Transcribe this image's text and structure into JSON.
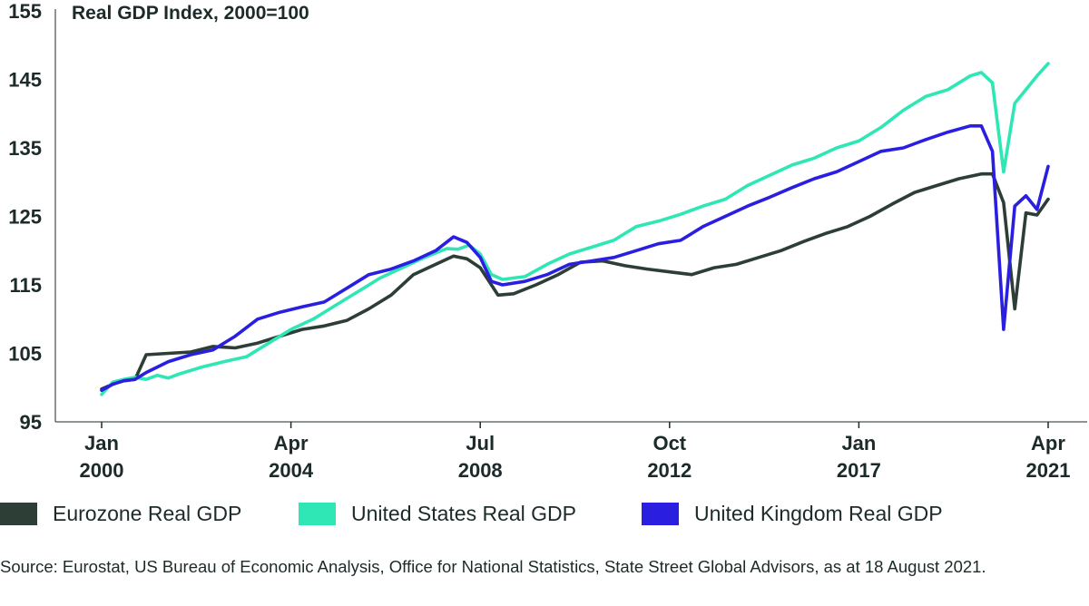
{
  "chart_data": {
    "type": "line",
    "title": "Real GDP Index, 2000=100",
    "ylim": [
      95,
      155
    ],
    "yticks": [
      95,
      105,
      115,
      125,
      135,
      145,
      155
    ],
    "xlim": [
      2000.0,
      2021.25
    ],
    "xticks": [
      {
        "x": 2000.0,
        "line1": "Jan",
        "line2": "2000"
      },
      {
        "x": 2004.25,
        "line1": "Apr",
        "line2": "2004"
      },
      {
        "x": 2008.5,
        "line1": "Jul",
        "line2": "2008"
      },
      {
        "x": 2012.75,
        "line1": "Oct",
        "line2": "2012"
      },
      {
        "x": 2017.0,
        "line1": "Jan",
        "line2": "2017"
      },
      {
        "x": 2021.25,
        "line1": "Apr",
        "line2": "2021"
      }
    ],
    "series": [
      {
        "name": "Eurozone Real GDP",
        "color": "#2c3e36",
        "points": [
          [
            2000.0,
            99.8
          ],
          [
            2000.25,
            100.5
          ],
          [
            2000.5,
            101.0
          ],
          [
            2000.75,
            101.2
          ],
          [
            2001.0,
            104.8
          ],
          [
            2001.5,
            105.0
          ],
          [
            2002.0,
            105.2
          ],
          [
            2002.5,
            106.0
          ],
          [
            2003.0,
            105.8
          ],
          [
            2003.5,
            106.5
          ],
          [
            2004.0,
            107.5
          ],
          [
            2004.5,
            108.5
          ],
          [
            2005.0,
            109.0
          ],
          [
            2005.5,
            109.8
          ],
          [
            2006.0,
            111.5
          ],
          [
            2006.5,
            113.5
          ],
          [
            2007.0,
            116.5
          ],
          [
            2007.5,
            118.0
          ],
          [
            2007.9,
            119.2
          ],
          [
            2008.2,
            118.8
          ],
          [
            2008.5,
            117.5
          ],
          [
            2008.9,
            113.5
          ],
          [
            2009.25,
            113.7
          ],
          [
            2009.75,
            115.0
          ],
          [
            2010.25,
            116.5
          ],
          [
            2010.75,
            118.3
          ],
          [
            2011.25,
            118.5
          ],
          [
            2011.75,
            117.8
          ],
          [
            2012.25,
            117.3
          ],
          [
            2012.75,
            116.9
          ],
          [
            2013.25,
            116.5
          ],
          [
            2013.75,
            117.5
          ],
          [
            2014.25,
            118.0
          ],
          [
            2014.75,
            119.0
          ],
          [
            2015.25,
            120.0
          ],
          [
            2015.75,
            121.3
          ],
          [
            2016.25,
            122.5
          ],
          [
            2016.75,
            123.5
          ],
          [
            2017.25,
            125.0
          ],
          [
            2017.75,
            126.8
          ],
          [
            2018.25,
            128.5
          ],
          [
            2018.75,
            129.5
          ],
          [
            2019.25,
            130.5
          ],
          [
            2019.75,
            131.2
          ],
          [
            2020.0,
            131.2
          ],
          [
            2020.25,
            127.0
          ],
          [
            2020.5,
            111.5
          ],
          [
            2020.75,
            125.5
          ],
          [
            2021.0,
            125.2
          ],
          [
            2021.25,
            127.5
          ]
        ]
      },
      {
        "name": "United States Real GDP",
        "color": "#2fe6b5",
        "points": [
          [
            2000.0,
            99.0
          ],
          [
            2000.25,
            100.8
          ],
          [
            2000.5,
            101.2
          ],
          [
            2000.75,
            101.5
          ],
          [
            2001.0,
            101.2
          ],
          [
            2001.25,
            101.8
          ],
          [
            2001.5,
            101.4
          ],
          [
            2001.75,
            102.0
          ],
          [
            2002.25,
            103.0
          ],
          [
            2002.75,
            103.8
          ],
          [
            2003.25,
            104.5
          ],
          [
            2003.75,
            106.5
          ],
          [
            2004.25,
            108.5
          ],
          [
            2004.75,
            110.0
          ],
          [
            2005.25,
            112.0
          ],
          [
            2005.75,
            114.0
          ],
          [
            2006.25,
            116.0
          ],
          [
            2006.75,
            117.5
          ],
          [
            2007.25,
            119.0
          ],
          [
            2007.75,
            120.3
          ],
          [
            2008.0,
            120.2
          ],
          [
            2008.25,
            120.8
          ],
          [
            2008.5,
            119.5
          ],
          [
            2008.75,
            116.5
          ],
          [
            2009.0,
            115.8
          ],
          [
            2009.5,
            116.2
          ],
          [
            2010.0,
            118.0
          ],
          [
            2010.5,
            119.5
          ],
          [
            2011.0,
            120.5
          ],
          [
            2011.5,
            121.5
          ],
          [
            2012.0,
            123.5
          ],
          [
            2012.5,
            124.3
          ],
          [
            2013.0,
            125.3
          ],
          [
            2013.5,
            126.5
          ],
          [
            2014.0,
            127.5
          ],
          [
            2014.5,
            129.5
          ],
          [
            2015.0,
            131.0
          ],
          [
            2015.5,
            132.5
          ],
          [
            2016.0,
            133.5
          ],
          [
            2016.5,
            135.0
          ],
          [
            2017.0,
            136.0
          ],
          [
            2017.5,
            138.0
          ],
          [
            2018.0,
            140.5
          ],
          [
            2018.5,
            142.5
          ],
          [
            2019.0,
            143.5
          ],
          [
            2019.5,
            145.5
          ],
          [
            2019.75,
            146.0
          ],
          [
            2020.0,
            144.5
          ],
          [
            2020.25,
            131.5
          ],
          [
            2020.5,
            141.5
          ],
          [
            2020.75,
            143.5
          ],
          [
            2021.0,
            145.5
          ],
          [
            2021.25,
            147.3
          ]
        ]
      },
      {
        "name": "United Kingdom Real GDP",
        "color": "#2a1fe0",
        "points": [
          [
            2000.0,
            99.6
          ],
          [
            2000.25,
            100.5
          ],
          [
            2000.5,
            101.0
          ],
          [
            2000.75,
            101.2
          ],
          [
            2001.0,
            102.2
          ],
          [
            2001.5,
            103.8
          ],
          [
            2002.0,
            104.8
          ],
          [
            2002.5,
            105.5
          ],
          [
            2003.0,
            107.5
          ],
          [
            2003.5,
            110.0
          ],
          [
            2004.0,
            111.0
          ],
          [
            2004.5,
            111.8
          ],
          [
            2005.0,
            112.5
          ],
          [
            2005.5,
            114.5
          ],
          [
            2006.0,
            116.5
          ],
          [
            2006.5,
            117.3
          ],
          [
            2007.0,
            118.5
          ],
          [
            2007.5,
            120.0
          ],
          [
            2007.9,
            122.0
          ],
          [
            2008.2,
            121.2
          ],
          [
            2008.5,
            119.0
          ],
          [
            2008.75,
            115.5
          ],
          [
            2009.0,
            115.0
          ],
          [
            2009.5,
            115.5
          ],
          [
            2010.0,
            116.5
          ],
          [
            2010.5,
            118.0
          ],
          [
            2011.0,
            118.5
          ],
          [
            2011.5,
            119.0
          ],
          [
            2012.0,
            120.0
          ],
          [
            2012.5,
            121.0
          ],
          [
            2013.0,
            121.5
          ],
          [
            2013.5,
            123.5
          ],
          [
            2014.0,
            125.0
          ],
          [
            2014.5,
            126.5
          ],
          [
            2015.0,
            127.8
          ],
          [
            2015.5,
            129.2
          ],
          [
            2016.0,
            130.5
          ],
          [
            2016.5,
            131.5
          ],
          [
            2017.0,
            133.0
          ],
          [
            2017.5,
            134.5
          ],
          [
            2018.0,
            135.0
          ],
          [
            2018.5,
            136.2
          ],
          [
            2019.0,
            137.3
          ],
          [
            2019.5,
            138.2
          ],
          [
            2019.75,
            138.2
          ],
          [
            2020.0,
            134.5
          ],
          [
            2020.25,
            108.5
          ],
          [
            2020.5,
            126.5
          ],
          [
            2020.75,
            128.0
          ],
          [
            2021.0,
            126.0
          ],
          [
            2021.25,
            132.3
          ]
        ]
      }
    ]
  },
  "source_note": "Source: Eurostat, US Bureau of Economic Analysis, Office for National Statistics, State Street Global Advisors, as at 18 August 2021."
}
